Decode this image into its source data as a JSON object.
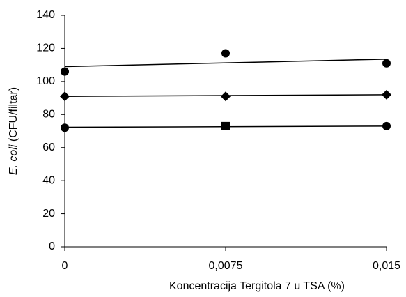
{
  "chart_data": {
    "type": "scatter",
    "x_label": "Koncentracija Tergitola 7 u TSA (%)",
    "y_label_italic": "E. coli",
    "y_label": "(CFU/filtar)",
    "x": [
      0,
      0.0075,
      0.015
    ],
    "series": [
      {
        "color": "#000000",
        "markers": [
          "circle",
          "circle",
          "circle"
        ],
        "values": [
          106,
          117,
          111
        ],
        "trend_values": [
          109,
          113.5
        ]
      },
      {
        "color": "#000000",
        "markers": [
          "diamond",
          "diamond",
          "diamond"
        ],
        "values": [
          91,
          91,
          92
        ],
        "trend_values": [
          91,
          92
        ]
      },
      {
        "color": "#000000",
        "markers": [
          "circle",
          "square",
          "circle"
        ],
        "values": [
          72,
          73,
          73
        ],
        "trend_values": [
          72.3,
          73
        ]
      }
    ],
    "xlim": [
      0,
      0.015
    ],
    "xticks": [
      0,
      {
        "value": 0.0075,
        "label": "0,0075"
      },
      {
        "value": 0.015,
        "label": "0,015"
      }
    ],
    "ylim": [
      0,
      140
    ],
    "yticks": [
      0,
      20,
      40,
      60,
      80,
      100,
      120,
      140
    ],
    "grid": false
  }
}
